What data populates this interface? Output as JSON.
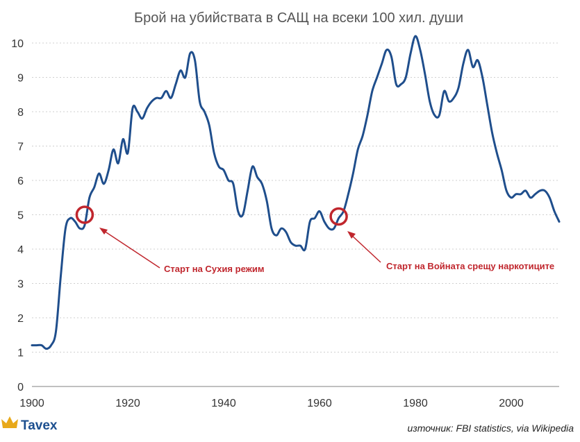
{
  "colors": {
    "line": "#1f4e8c",
    "grid": "#cfcfcf",
    "accent_red": "#c0262d",
    "brand_blue": "#1c4f8f",
    "brand_gold": "#e8a91a"
  },
  "brand": {
    "name": "Tavex",
    "icon": "crown-icon"
  },
  "source": "източник: FBI statistics, via Wikipedia",
  "annotations": [
    {
      "label": "Старт на Сухия режим",
      "year": 1911,
      "value": 5.0
    },
    {
      "label": "Старт на Войната срещу наркотиците",
      "year": 1964,
      "value": 4.95
    }
  ],
  "chart_data": {
    "type": "line",
    "title": "Брой на убийствата в САЩ на всеки 100 хил. души",
    "xlabel": "",
    "ylabel": "",
    "xlim": [
      1900,
      2010
    ],
    "ylim": [
      0,
      10
    ],
    "x_ticks": [
      1900,
      1920,
      1940,
      1960,
      1980,
      2000
    ],
    "y_ticks": [
      0,
      1,
      2,
      3,
      4,
      5,
      6,
      7,
      8,
      9,
      10
    ],
    "grid": true,
    "series": [
      {
        "x": [
          1900,
          1901,
          1902,
          1903,
          1904,
          1905,
          1906,
          1907,
          1908,
          1909,
          1910,
          1911,
          1912,
          1913,
          1914,
          1915,
          1916,
          1917,
          1918,
          1919,
          1920,
          1921,
          1922,
          1923,
          1924,
          1925,
          1926,
          1927,
          1928,
          1929,
          1930,
          1931,
          1932,
          1933,
          1934,
          1935,
          1936,
          1937,
          1938,
          1939,
          1940,
          1941,
          1942,
          1943,
          1944,
          1945,
          1946,
          1947,
          1948,
          1949,
          1950,
          1951,
          1952,
          1953,
          1954,
          1955,
          1956,
          1957,
          1958,
          1959,
          1960,
          1961,
          1962,
          1963,
          1964,
          1965,
          1966,
          1967,
          1968,
          1969,
          1970,
          1971,
          1972,
          1973,
          1974,
          1975,
          1976,
          1977,
          1978,
          1979,
          1980,
          1981,
          1982,
          1983,
          1984,
          1985,
          1986,
          1987,
          1988,
          1989,
          1990,
          1991,
          1992,
          1993,
          1994,
          1995,
          1996,
          1997,
          1998,
          1999,
          2000,
          2001,
          2002,
          2003,
          2004,
          2005,
          2006,
          2007,
          2008,
          2009,
          2010
        ],
        "values": [
          1.2,
          1.2,
          1.2,
          1.1,
          1.2,
          1.6,
          3.2,
          4.6,
          4.9,
          4.8,
          4.6,
          4.7,
          5.5,
          5.8,
          6.2,
          5.9,
          6.3,
          6.9,
          6.5,
          7.2,
          6.8,
          8.1,
          8.0,
          7.8,
          8.1,
          8.3,
          8.4,
          8.4,
          8.6,
          8.4,
          8.8,
          9.2,
          9.0,
          9.7,
          9.5,
          8.3,
          8.0,
          7.6,
          6.8,
          6.4,
          6.3,
          6.0,
          5.9,
          5.1,
          5.0,
          5.7,
          6.4,
          6.1,
          5.9,
          5.4,
          4.6,
          4.4,
          4.6,
          4.5,
          4.2,
          4.1,
          4.1,
          4.0,
          4.8,
          4.9,
          5.1,
          4.8,
          4.6,
          4.6,
          4.9,
          5.1,
          5.6,
          6.2,
          6.9,
          7.3,
          7.9,
          8.6,
          9.0,
          9.4,
          9.8,
          9.6,
          8.8,
          8.8,
          9.0,
          9.7,
          10.2,
          9.8,
          9.1,
          8.3,
          7.9,
          7.9,
          8.6,
          8.3,
          8.4,
          8.7,
          9.4,
          9.8,
          9.3,
          9.5,
          9.0,
          8.2,
          7.4,
          6.8,
          6.3,
          5.7,
          5.5,
          5.6,
          5.6,
          5.7,
          5.5,
          5.6,
          5.7,
          5.7,
          5.5,
          5.1,
          4.8
        ]
      }
    ]
  }
}
